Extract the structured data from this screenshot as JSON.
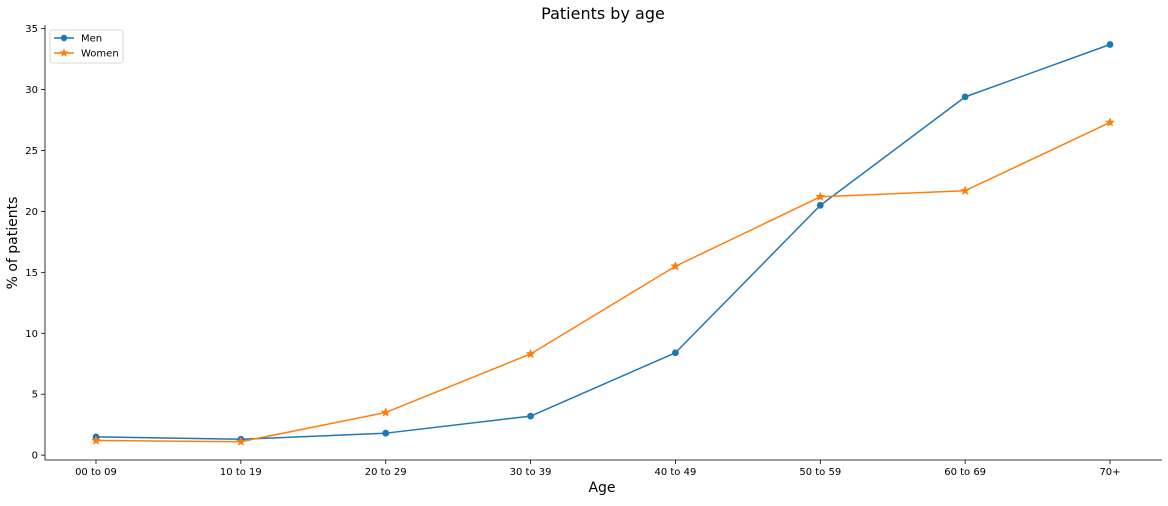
{
  "chart_data": {
    "type": "line",
    "title": "Patients by age",
    "xlabel": "Age",
    "ylabel": "% of patients",
    "categories": [
      "00 to 09",
      "10 to 19",
      "20 to 29",
      "30 to 39",
      "40 to 49",
      "50 to 59",
      "60 to 69",
      "70+"
    ],
    "ylim": [
      -0.4,
      35.3
    ],
    "yticks": [
      0,
      5,
      10,
      15,
      20,
      25,
      30,
      35
    ],
    "grid": false,
    "legend_position": "top-left",
    "series": [
      {
        "name": "Men",
        "color": "#1f77b4",
        "marker": "circle",
        "values": [
          1.5,
          1.3,
          1.8,
          3.2,
          8.4,
          20.5,
          29.4,
          33.7
        ]
      },
      {
        "name": "Women",
        "color": "#ff7f0e",
        "marker": "star",
        "values": [
          1.2,
          1.1,
          3.5,
          8.3,
          15.5,
          21.2,
          21.7,
          27.3
        ]
      }
    ]
  }
}
